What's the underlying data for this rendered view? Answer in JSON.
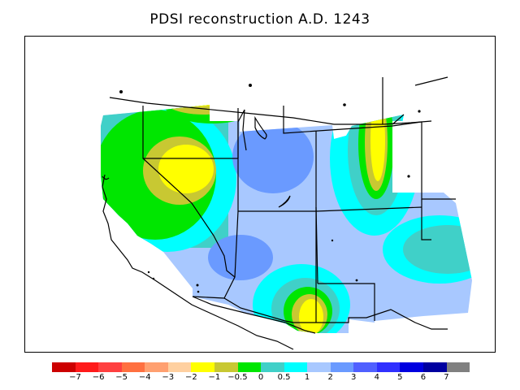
{
  "title": "PDSI reconstruction A.D. 1243",
  "legend": {
    "colors": [
      "#cc0000",
      "#ff1a1a",
      "#ff4040",
      "#ff7040",
      "#ffa070",
      "#ffd0a0",
      "#ffff00",
      "#c8c832",
      "#00e600",
      "#40d0c8",
      "#00ffff",
      "#a8c8ff",
      "#6a9aff",
      "#5060ff",
      "#3030ff",
      "#0000e0",
      "#0000a0",
      "#808080"
    ],
    "ticks": [
      "−7",
      "−6",
      "−5",
      "−4",
      "−3",
      "−2",
      "−1",
      "−0.5",
      "0",
      "0.5",
      "1",
      "2",
      "3",
      "4",
      "5",
      "6",
      "7"
    ]
  }
}
